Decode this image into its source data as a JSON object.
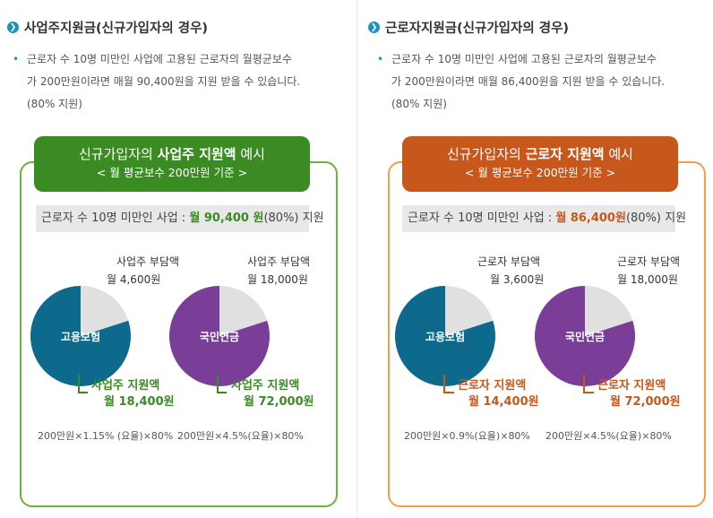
{
  "employer": {
    "title": "사업주지원금(신규가입자의 경우)",
    "desc_line1": "근로자 수 10명 미만인 사업에 고용된 근로자의 월평균보수",
    "desc_line2": "가 200만원이라면 매월 90,400원을 지원 받을 수 있습니다.",
    "desc_line3": "(80% 지원)",
    "header_pre": "신규가입자의 ",
    "header_bold": "사업주 지원액",
    "header_post": " 예시",
    "header_sub": "< 월 평균보수 200만원 기준 >",
    "bar_pre": "근로자 수 10명 미만인 사업 : ",
    "bar_amount": "월 90,400 원",
    "bar_post": "(80%) 지원",
    "pie1": {
      "center": "고용보험",
      "burden_label": "사업주 부담액",
      "burden_amount": "월 4,600원",
      "support_label": "사업주 지원액",
      "support_amount": "월 18,400원",
      "formula": "200만원×1.15% (요율)×80%",
      "support_fraction": 0.8
    },
    "pie2": {
      "center": "국민연금",
      "burden_label": "사업주 부담액",
      "burden_amount": "월 18,000원",
      "support_label": "사업주 지원액",
      "support_amount": "월 72,000원",
      "formula": "200만원×4.5%(요율)×80%",
      "support_fraction": 0.8
    }
  },
  "worker": {
    "title": "근로자지원금(신규가입자의 경우)",
    "desc_line1": "근로자 수 10명 미만인 사업에 고용된 근로자의 월평균보수",
    "desc_line2": "가 200만원이라면 매월 86,400원을 지원 받을 수 있습니다.",
    "desc_line3": "(80% 지원)",
    "header_pre": "신규가입자의 ",
    "header_bold": "근로자 지원액",
    "header_post": " 예시",
    "header_sub": "< 월 평균보수 200만원 기준 >",
    "bar_pre": "근로자 수 10명 미만인 사업 : ",
    "bar_amount": "월 86,400원",
    "bar_post": "(80%) 지원",
    "pie1": {
      "center": "고용보험",
      "burden_label": "근로자 부담액",
      "burden_amount": "월 3,600원",
      "support_label": "근로자 지원액",
      "support_amount": "월 14,400원",
      "formula": "200만원×0.9%(요율)×80%",
      "support_fraction": 0.8
    },
    "pie2": {
      "center": "국민연금",
      "burden_label": "근로자 부담액",
      "burden_amount": "월 18,000원",
      "support_label": "근로자 지원액",
      "support_amount": "월 72,000원",
      "formula": "200만원×4.5%(요율)×80%",
      "support_fraction": 0.8
    }
  },
  "colors": {
    "employment_insurance": "#0e6a8c",
    "national_pension": "#7b3e98",
    "burden_slice": "#e0e0e0",
    "green": "#3a8b22",
    "orange": "#c8571b",
    "section_bullet": "#1c95bd"
  }
}
